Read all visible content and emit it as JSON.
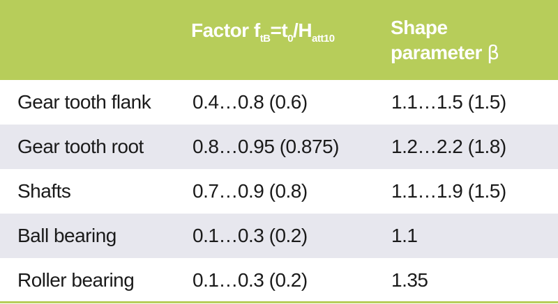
{
  "header": {
    "factor_prefix": "Factor f",
    "factor_sub1": "tB",
    "factor_mid": "=t",
    "factor_sub2": "0",
    "factor_slash": "/H",
    "factor_sub3": "att10",
    "shape_line1": "Shape",
    "shape_line2": "parameter ",
    "shape_symbol": "β"
  },
  "rows": [
    {
      "component": "Gear tooth flank",
      "factor": "0.4…0.8 (0.6)",
      "shape": "1.1…1.5 (1.5)"
    },
    {
      "component": "Gear tooth root",
      "factor": "0.8…0.95 (0.875)",
      "shape": "1.2…2.2 (1.8)"
    },
    {
      "component": "Shafts",
      "factor": "0.7…0.9 (0.8)",
      "shape": "1.1…1.9 (1.5)"
    },
    {
      "component": "Ball bearing",
      "factor": "0.1…0.3 (0.2)",
      "shape": "1.1"
    },
    {
      "component": "Roller bearing",
      "factor": "0.1…0.3 (0.2)",
      "shape": "1.35"
    }
  ],
  "colors": {
    "header_bg": "#b7cd5a",
    "header_text": "#ffffff",
    "shaded_row": "#e7e7ee",
    "text": "#1a1a1a"
  }
}
